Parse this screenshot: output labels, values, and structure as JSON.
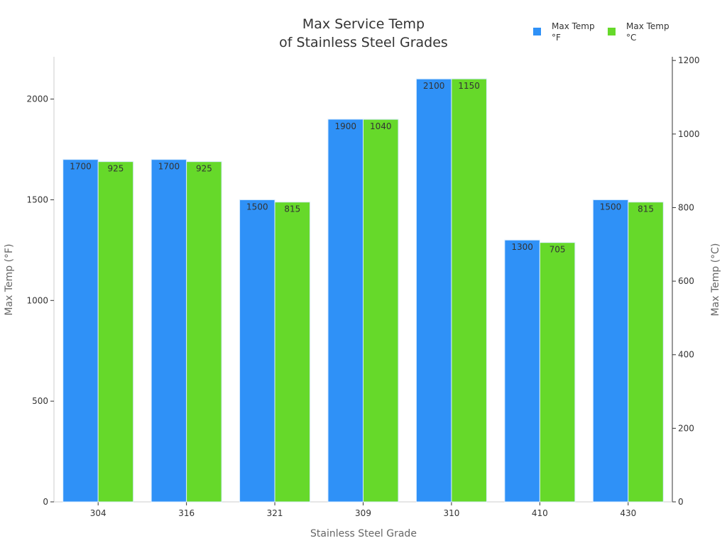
{
  "chart_data": {
    "type": "bar",
    "title": [
      "Max Service Temp",
      "of Stainless Steel Grades"
    ],
    "xlabel": "Stainless Steel Grade",
    "ylabel": "Max Temp (°F)",
    "y2label": "Max Temp (°C)",
    "categories": [
      "304",
      "316",
      "321",
      "309",
      "310",
      "410",
      "430"
    ],
    "series": [
      {
        "name": [
          "Max Temp",
          "°F"
        ],
        "axis": "left",
        "color": "#2f91f7",
        "values": [
          1700,
          1700,
          1500,
          1900,
          2100,
          1300,
          1500
        ]
      },
      {
        "name": [
          "Max Temp",
          "°C"
        ],
        "axis": "right",
        "color": "#66d92a",
        "values": [
          925,
          925,
          815,
          1040,
          1150,
          705,
          815
        ]
      }
    ],
    "ylim": [
      0,
      2210
    ],
    "y2lim": [
      0,
      1210
    ],
    "yticks": [
      0,
      500,
      1000,
      1500,
      2000
    ],
    "y2ticks": [
      0,
      200,
      400,
      600,
      800,
      1000,
      1200
    ],
    "grid": false,
    "legend": "top-right",
    "data_labels": true
  }
}
